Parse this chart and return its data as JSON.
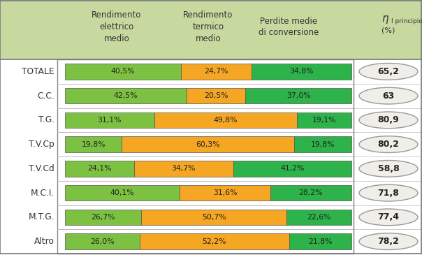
{
  "rows": [
    {
      "label": "TOTALE",
      "electric": 40.5,
      "thermal": 24.7,
      "losses": 34.8,
      "eta": "65,2"
    },
    {
      "label": "C.C.",
      "electric": 42.5,
      "thermal": 20.5,
      "losses": 37.0,
      "eta": "63"
    },
    {
      "label": "T.G.",
      "electric": 31.1,
      "thermal": 49.8,
      "losses": 19.1,
      "eta": "80,9"
    },
    {
      "label": "T.V.Cp",
      "electric": 19.8,
      "thermal": 60.3,
      "losses": 19.8,
      "eta": "80,2"
    },
    {
      "label": "T.V.Cd",
      "electric": 24.1,
      "thermal": 34.7,
      "losses": 41.2,
      "eta": "58,8"
    },
    {
      "label": "M.C.I.",
      "electric": 40.1,
      "thermal": 31.6,
      "losses": 28.2,
      "eta": "71,8"
    },
    {
      "label": "M.T.G.",
      "electric": 26.7,
      "thermal": 50.7,
      "losses": 22.6,
      "eta": "77,4"
    },
    {
      "label": "Altro",
      "electric": 26.0,
      "thermal": 52.2,
      "losses": 21.8,
      "eta": "78,2"
    }
  ],
  "col_headers": [
    "Rendimento\nelettrico\nmedio",
    "Rendimento\ntermico\nmedio",
    "Perdite medie\ndi conversione"
  ],
  "eta_header_line1": "η",
  "eta_header_line2": "I principio",
  "eta_header_line3": "(%)",
  "color_electric": "#7DC142",
  "color_thermal": "#F5A623",
  "color_losses": "#2DB34A",
  "header_bg": "#C8D9A0",
  "table_border": "#888888",
  "row_sep": "#BBBBBB",
  "outer_bg": "#FFFFFF",
  "eta_ellipse_bg": "#F0EEE8",
  "eta_ellipse_border": "#999999"
}
